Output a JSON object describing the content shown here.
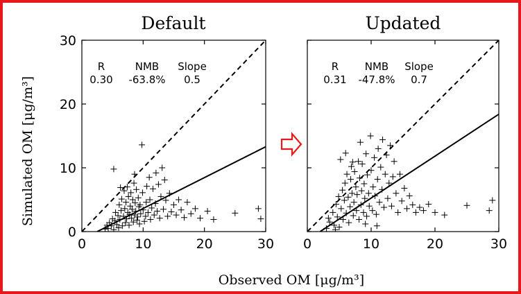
{
  "frame_color": "#e8191c",
  "arrow_color": "#e8191c",
  "shared_ylabel": "Simulated OM [μg/m³]",
  "shared_xlabel": "Observed OM [μg/m³]",
  "chart_data": [
    {
      "type": "scatter",
      "title": "Default",
      "xlim": [
        0,
        30
      ],
      "ylim": [
        0,
        30
      ],
      "xticks": [
        0,
        10,
        20,
        30
      ],
      "yticks": [
        0,
        10,
        20,
        30
      ],
      "grid": false,
      "stats": {
        "headers": [
          "R",
          "NMB",
          "Slope"
        ],
        "values": [
          "0.30",
          "-63.8%",
          "0.5"
        ]
      },
      "one_to_one_line": {
        "style": "dashed",
        "x": [
          0,
          30
        ],
        "y": [
          0,
          30
        ]
      },
      "fit_line": {
        "style": "solid",
        "x": [
          2.5,
          30
        ],
        "y": [
          0,
          13.3
        ]
      },
      "points": [
        [
          4.3,
          0.5
        ],
        [
          4.5,
          1.4
        ],
        [
          4.8,
          0.9
        ],
        [
          5.0,
          2.0
        ],
        [
          5.2,
          0.3
        ],
        [
          5.4,
          1.7
        ],
        [
          5.5,
          3.0
        ],
        [
          5.7,
          1.1
        ],
        [
          5.9,
          2.5
        ],
        [
          6.0,
          0.6
        ],
        [
          6.1,
          4.2
        ],
        [
          6.2,
          1.9
        ],
        [
          6.4,
          3.3
        ],
        [
          6.5,
          5.1
        ],
        [
          6.6,
          0.9
        ],
        [
          6.8,
          2.4
        ],
        [
          6.9,
          6.4
        ],
        [
          7.0,
          3.6
        ],
        [
          7.1,
          1.4
        ],
        [
          7.2,
          4.6
        ],
        [
          7.3,
          2.0
        ],
        [
          7.4,
          7.0
        ],
        [
          7.5,
          3.0
        ],
        [
          7.6,
          5.5
        ],
        [
          7.7,
          1.0
        ],
        [
          7.8,
          2.7
        ],
        [
          7.9,
          4.0
        ],
        [
          8.0,
          6.1
        ],
        [
          8.1,
          2.1
        ],
        [
          8.2,
          3.5
        ],
        [
          8.3,
          5.0
        ],
        [
          8.4,
          1.5
        ],
        [
          8.5,
          7.6
        ],
        [
          8.6,
          2.6
        ],
        [
          8.7,
          4.5
        ],
        [
          8.8,
          3.2
        ],
        [
          8.9,
          6.6
        ],
        [
          9.0,
          1.8
        ],
        [
          9.1,
          2.3
        ],
        [
          9.2,
          5.3
        ],
        [
          9.3,
          3.9
        ],
        [
          9.4,
          1.2
        ],
        [
          9.5,
          4.2
        ],
        [
          9.6,
          2.8
        ],
        [
          9.8,
          13.6
        ],
        [
          9.9,
          6.1
        ],
        [
          10.0,
          3.4
        ],
        [
          10.2,
          1.6
        ],
        [
          10.4,
          2.4
        ],
        [
          10.5,
          4.6
        ],
        [
          10.6,
          7.1
        ],
        [
          10.8,
          3.0
        ],
        [
          11.0,
          8.5
        ],
        [
          11.1,
          5.0
        ],
        [
          11.2,
          1.9
        ],
        [
          11.4,
          3.7
        ],
        [
          11.6,
          6.7
        ],
        [
          11.8,
          2.6
        ],
        [
          12.0,
          4.4
        ],
        [
          12.1,
          9.2
        ],
        [
          12.3,
          3.2
        ],
        [
          12.5,
          7.4
        ],
        [
          12.7,
          2.1
        ],
        [
          12.9,
          5.5
        ],
        [
          13.1,
          10.0
        ],
        [
          13.3,
          3.5
        ],
        [
          13.5,
          8.1
        ],
        [
          13.7,
          4.9
        ],
        [
          14.0,
          2.4
        ],
        [
          14.3,
          6.0
        ],
        [
          14.6,
          3.1
        ],
        [
          15.0,
          4.2
        ],
        [
          15.4,
          2.6
        ],
        [
          15.8,
          5.0
        ],
        [
          16.2,
          3.4
        ],
        [
          16.7,
          2.2
        ],
        [
          17.2,
          4.6
        ],
        [
          17.8,
          2.8
        ],
        [
          18.5,
          3.6
        ],
        [
          19.3,
          2.1
        ],
        [
          20.5,
          3.2
        ],
        [
          21.5,
          1.9
        ],
        [
          25.0,
          2.9
        ],
        [
          28.8,
          3.6
        ],
        [
          29.2,
          2.0
        ],
        [
          5.2,
          9.8
        ],
        [
          3.8,
          0.4
        ],
        [
          4.1,
          1.0
        ],
        [
          6.3,
          6.9
        ],
        [
          8.6,
          9.0
        ]
      ]
    },
    {
      "type": "scatter",
      "title": "Updated",
      "xlim": [
        0,
        30
      ],
      "ylim": [
        0,
        30
      ],
      "xticks": [
        0,
        10,
        20,
        30
      ],
      "yticks": [
        0,
        10,
        20,
        30
      ],
      "grid": false,
      "stats": {
        "headers": [
          "R",
          "NMB",
          "Slope"
        ],
        "values": [
          "0.31",
          "-47.8%",
          "0.7"
        ]
      },
      "one_to_one_line": {
        "style": "dashed",
        "x": [
          0,
          30
        ],
        "y": [
          0,
          30
        ]
      },
      "fit_line": {
        "style": "solid",
        "x": [
          2.0,
          30
        ],
        "y": [
          0,
          18.4
        ]
      },
      "points": [
        [
          3.0,
          0.5
        ],
        [
          3.5,
          1.5
        ],
        [
          4.0,
          3.0
        ],
        [
          4.2,
          1.0
        ],
        [
          4.5,
          4.3
        ],
        [
          4.7,
          2.3
        ],
        [
          4.9,
          5.5
        ],
        [
          5.0,
          0.7
        ],
        [
          5.2,
          11.3
        ],
        [
          5.3,
          3.6
        ],
        [
          5.5,
          6.5
        ],
        [
          5.6,
          1.9
        ],
        [
          5.8,
          4.9
        ],
        [
          5.9,
          7.6
        ],
        [
          6.1,
          2.9
        ],
        [
          6.2,
          9.0
        ],
        [
          6.4,
          5.4
        ],
        [
          6.5,
          1.4
        ],
        [
          6.7,
          3.9
        ],
        [
          6.8,
          8.2
        ],
        [
          6.9,
          10.2
        ],
        [
          7.0,
          6.0
        ],
        [
          7.2,
          2.5
        ],
        [
          7.3,
          4.6
        ],
        [
          7.4,
          9.4
        ],
        [
          7.6,
          7.0
        ],
        [
          7.7,
          3.3
        ],
        [
          7.8,
          5.8
        ],
        [
          8.0,
          11.0
        ],
        [
          8.1,
          1.9
        ],
        [
          8.2,
          8.4
        ],
        [
          8.4,
          4.2
        ],
        [
          8.5,
          6.4
        ],
        [
          8.6,
          10.6
        ],
        [
          8.8,
          3.0
        ],
        [
          8.9,
          7.5
        ],
        [
          9.0,
          5.2
        ],
        [
          9.2,
          12.2
        ],
        [
          9.3,
          2.4
        ],
        [
          9.4,
          8.9
        ],
        [
          9.6,
          6.0
        ],
        [
          9.7,
          4.0
        ],
        [
          9.9,
          15.0
        ],
        [
          10.0,
          9.6
        ],
        [
          10.2,
          3.3
        ],
        [
          10.3,
          7.0
        ],
        [
          10.5,
          11.6
        ],
        [
          10.6,
          5.6
        ],
        [
          10.8,
          2.7
        ],
        [
          11.0,
          8.2
        ],
        [
          11.1,
          13.0
        ],
        [
          11.3,
          4.6
        ],
        [
          11.5,
          10.1
        ],
        [
          11.7,
          6.6
        ],
        [
          11.8,
          14.4
        ],
        [
          12.0,
          3.8
        ],
        [
          12.2,
          9.0
        ],
        [
          12.4,
          12.0
        ],
        [
          12.6,
          5.2
        ],
        [
          12.8,
          7.6
        ],
        [
          13.0,
          13.5
        ],
        [
          13.2,
          4.0
        ],
        [
          13.4,
          8.6
        ],
        [
          13.6,
          11.0
        ],
        [
          13.9,
          6.0
        ],
        [
          14.2,
          3.0
        ],
        [
          14.5,
          9.0
        ],
        [
          14.8,
          4.8
        ],
        [
          15.2,
          6.8
        ],
        [
          15.6,
          3.6
        ],
        [
          16.0,
          5.6
        ],
        [
          16.5,
          4.2
        ],
        [
          17.0,
          3.0
        ],
        [
          17.6,
          3.8
        ],
        [
          18.2,
          3.3
        ],
        [
          19.0,
          4.3
        ],
        [
          20.0,
          3.0
        ],
        [
          21.5,
          2.6
        ],
        [
          25.0,
          4.1
        ],
        [
          28.5,
          3.3
        ],
        [
          29.0,
          4.9
        ],
        [
          3.3,
          2.1
        ],
        [
          4.4,
          0.3
        ],
        [
          6.0,
          12.3
        ],
        [
          7.1,
          10.9
        ],
        [
          8.3,
          14.0
        ],
        [
          9.1,
          1.2
        ],
        [
          10.9,
          0.9
        ]
      ]
    }
  ]
}
